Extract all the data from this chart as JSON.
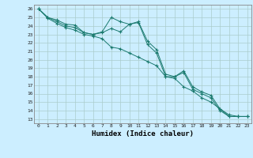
{
  "xlabel": "Humidex (Indice chaleur)",
  "ylabel": "",
  "xlim": [
    -0.5,
    23.5
  ],
  "ylim": [
    12.5,
    26.5
  ],
  "yticks": [
    13,
    14,
    15,
    16,
    17,
    18,
    19,
    20,
    21,
    22,
    23,
    24,
    25,
    26
  ],
  "xticks": [
    0,
    1,
    2,
    3,
    4,
    5,
    6,
    7,
    8,
    9,
    10,
    11,
    12,
    13,
    14,
    15,
    16,
    17,
    18,
    19,
    20,
    21,
    22,
    23
  ],
  "line_color": "#1a7a6e",
  "bg_color": "#cceeff",
  "grid_color": "#aacccc",
  "line1_x": [
    0,
    1,
    2,
    3,
    4,
    5,
    6,
    7,
    8,
    9,
    10,
    11,
    12,
    13,
    14,
    15,
    16,
    17,
    18,
    19,
    20,
    21,
    22,
    23
  ],
  "line1_y": [
    26.0,
    25.0,
    24.7,
    24.2,
    24.1,
    23.2,
    23.0,
    23.3,
    25.0,
    24.5,
    24.2,
    24.5,
    22.2,
    21.2,
    18.3,
    18.0,
    18.7,
    16.8,
    16.2,
    15.8,
    14.2,
    13.3,
    13.3,
    13.3
  ],
  "line2_x": [
    0,
    1,
    2,
    3,
    4,
    5,
    6,
    7,
    8,
    9,
    10,
    11,
    12,
    13,
    14,
    15,
    16,
    17,
    18,
    19,
    20,
    21,
    22,
    23
  ],
  "line2_y": [
    26.0,
    25.0,
    24.5,
    24.0,
    23.8,
    23.2,
    23.0,
    23.2,
    23.7,
    23.3,
    24.2,
    24.4,
    21.8,
    20.8,
    18.0,
    18.0,
    18.5,
    16.5,
    16.0,
    15.5,
    14.0,
    13.3,
    13.3,
    13.3
  ],
  "line3_x": [
    0,
    1,
    2,
    3,
    4,
    5,
    6,
    7,
    8,
    9,
    10,
    11,
    12,
    13,
    14,
    15,
    16,
    17,
    18,
    19,
    20,
    21,
    22,
    23
  ],
  "line3_y": [
    26.0,
    24.9,
    24.3,
    23.8,
    23.5,
    23.0,
    22.8,
    22.5,
    21.5,
    21.3,
    20.8,
    20.3,
    19.8,
    19.3,
    18.0,
    17.8,
    16.8,
    16.3,
    15.5,
    15.0,
    14.2,
    13.5,
    13.3,
    13.3
  ]
}
